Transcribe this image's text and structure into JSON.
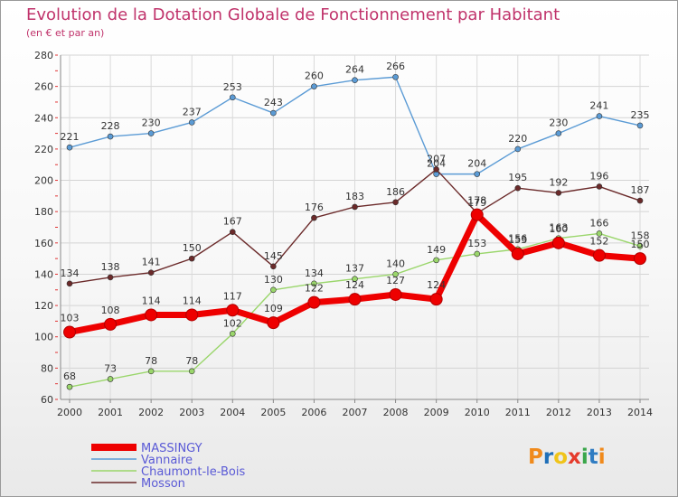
{
  "title": "Evolution de la Dotation Globale de Fonctionnement par Habitant",
  "subtitle": "(en € et par an)",
  "logo": {
    "text": "Proxiti",
    "letters": [
      "P",
      "r",
      "o",
      "x",
      "i",
      "t",
      "i"
    ],
    "colors": [
      "#f08a1c",
      "#1f6fb8",
      "#f0c419",
      "#e53b2c",
      "#3aa64a",
      "#2f7cc2",
      "#f08a1c"
    ]
  },
  "chart_data": {
    "type": "line",
    "x": [
      "2000",
      "2001",
      "2002",
      "2003",
      "2004",
      "2005",
      "2006",
      "2007",
      "2008",
      "2009",
      "2010",
      "2011",
      "2012",
      "2013",
      "2014"
    ],
    "ylim": [
      60,
      280
    ],
    "yticks": [
      60,
      80,
      100,
      120,
      140,
      160,
      180,
      200,
      220,
      240,
      260,
      280
    ],
    "grid": true,
    "legend_position": "bottom-left",
    "series": [
      {
        "name": "MASSINGY",
        "color": "#ee0000",
        "labels": [
          "103",
          "108",
          "114",
          "114",
          "117",
          "109",
          "122",
          "124",
          "127",
          "124",
          "178",
          "153",
          "160",
          "152",
          "150"
        ],
        "values": [
          103,
          108,
          114,
          114,
          117,
          109,
          122,
          124,
          127,
          124,
          178,
          153,
          160,
          152,
          150
        ]
      },
      {
        "name": "Vannaire",
        "color": "#5b9bd5",
        "labels": [
          "221",
          "228",
          "230",
          "237",
          "253",
          "243",
          "260",
          "264",
          "266",
          "204",
          "204",
          "220",
          "230",
          "241",
          "235"
        ],
        "values": [
          221,
          228,
          230,
          237,
          253,
          243,
          260,
          264,
          266,
          204,
          204,
          220,
          230,
          241,
          235
        ]
      },
      {
        "name": "Chaumont-le-Bois",
        "color": "#9ad66b",
        "labels": [
          "68",
          "73",
          "78",
          "78",
          "102",
          "130",
          "134",
          "137",
          "140",
          "149",
          "153",
          "156",
          "163",
          "166",
          "158"
        ],
        "values": [
          68,
          73,
          78,
          78,
          102,
          130,
          134,
          137,
          140,
          149,
          153,
          156,
          163,
          166,
          158
        ]
      },
      {
        "name": "Mosson",
        "color": "#6b2a2a",
        "labels": [
          "134",
          "138",
          "141",
          "150",
          "167",
          "145",
          "176",
          "183",
          "186",
          "207",
          "179",
          "195",
          "192",
          "196",
          "187"
        ],
        "values": [
          134,
          138,
          141,
          150,
          167,
          145,
          176,
          183,
          186,
          207,
          179,
          195,
          192,
          196,
          187
        ]
      }
    ]
  }
}
